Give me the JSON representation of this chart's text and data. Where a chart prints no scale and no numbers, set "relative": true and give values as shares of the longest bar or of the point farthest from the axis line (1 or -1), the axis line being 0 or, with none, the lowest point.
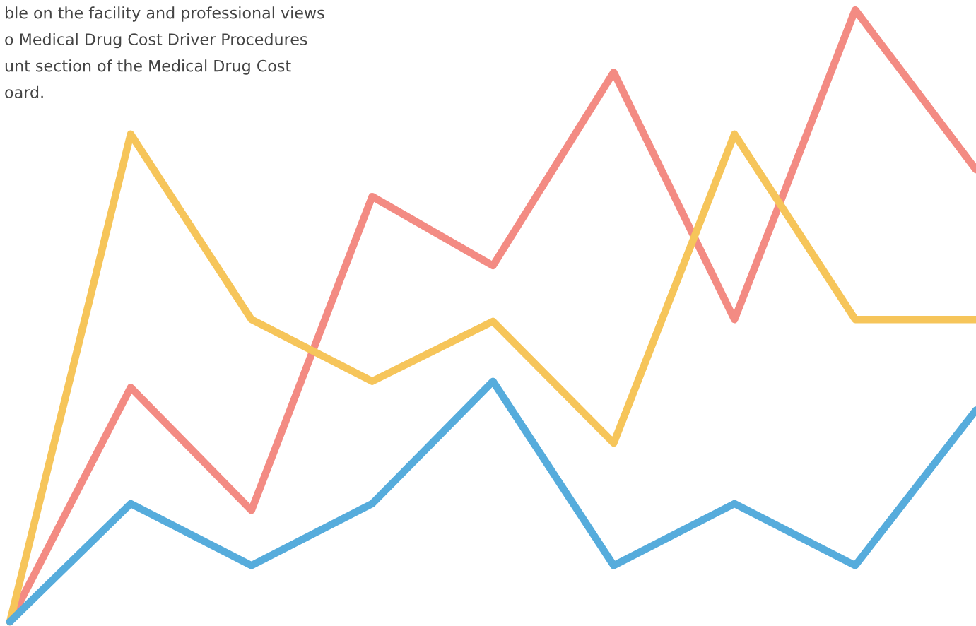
{
  "chart_data": {
    "type": "line",
    "relative": true,
    "categories": [
      null,
      null,
      null,
      null,
      null,
      null,
      null,
      null,
      null
    ],
    "series": [
      {
        "color": "#f38b83",
        "values": [
          0,
          0.383,
          0.182,
          0.695,
          0.582,
          0.898,
          0.494,
          1.0,
          0.739
        ]
      },
      {
        "color": "#f6c55a",
        "values": [
          0,
          0.797,
          0.494,
          0.393,
          0.491,
          0.292,
          0.797,
          0.494,
          0.494
        ]
      },
      {
        "color": "#56acdc",
        "values": [
          0,
          0.193,
          0.092,
          0.193,
          0.393,
          0.092,
          0.193,
          0.092,
          0.346
        ]
      }
    ],
    "annotations": [
      "ble on the facility and professional views",
      "o Medical Drug Cost Driver Procedures",
      "unt section of the Medical Drug Cost",
      "oard."
    ],
    "marker": "none",
    "line_style": "solid"
  }
}
